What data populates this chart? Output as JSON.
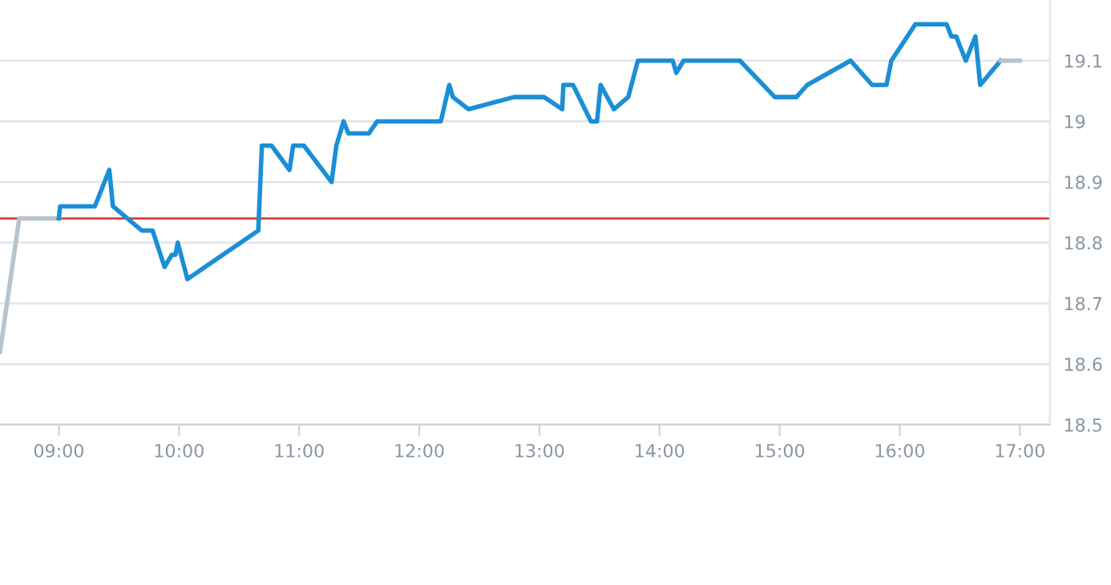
{
  "chart_data": {
    "type": "line",
    "series": [
      {
        "color": "#b8c4cc",
        "x": [
          8.51,
          8.67,
          9.0
        ],
        "values": [
          18.62,
          18.84,
          18.84
        ]
      },
      {
        "color": "#1a8fd6",
        "x": [
          9.0,
          9.01,
          9.3,
          9.42,
          9.45,
          9.69,
          9.78,
          9.88,
          9.94,
          9.97,
          9.99,
          10.07,
          10.66,
          10.69,
          10.77,
          10.92,
          10.95,
          11.04,
          11.27,
          11.31,
          11.37,
          11.41,
          11.58,
          11.65,
          12.18,
          12.25,
          12.28,
          12.41,
          12.79,
          13.04,
          13.19,
          13.2,
          13.28,
          13.43,
          13.48,
          13.51,
          13.62,
          13.74,
          13.82,
          14.11,
          14.14,
          14.2,
          14.67,
          14.96,
          15.14,
          15.23,
          15.59,
          15.77,
          15.89,
          15.93,
          16.13,
          16.39,
          16.43,
          16.47,
          16.55,
          16.63,
          16.67,
          16.84
        ],
        "values": [
          18.84,
          18.86,
          18.86,
          18.92,
          18.86,
          18.82,
          18.82,
          18.76,
          18.78,
          18.78,
          18.8,
          18.74,
          18.82,
          18.96,
          18.96,
          18.92,
          18.96,
          18.96,
          18.9,
          18.96,
          19.0,
          18.98,
          18.98,
          19.0,
          19.0,
          19.06,
          19.04,
          19.02,
          19.04,
          19.04,
          19.02,
          19.06,
          19.06,
          19.0,
          19.0,
          19.06,
          19.02,
          19.04,
          19.1,
          19.1,
          19.08,
          19.1,
          19.1,
          19.04,
          19.04,
          19.06,
          19.1,
          19.06,
          19.06,
          19.1,
          19.16,
          19.16,
          19.14,
          19.14,
          19.1,
          19.14,
          19.06,
          19.1
        ]
      },
      {
        "color": "#b8c4cc",
        "x": [
          16.84,
          17.0
        ],
        "values": [
          19.1,
          19.1
        ]
      }
    ],
    "xlim": [
      8.51,
      17.25
    ],
    "xticks": [
      {
        "value": 9,
        "label": "09:00"
      },
      {
        "value": 10,
        "label": "10:00"
      },
      {
        "value": 11,
        "label": "11:00"
      },
      {
        "value": 12,
        "label": "12:00"
      },
      {
        "value": 13,
        "label": "13:00"
      },
      {
        "value": 14,
        "label": "14:00"
      },
      {
        "value": 15,
        "label": "15:00"
      },
      {
        "value": 16,
        "label": "16:00"
      },
      {
        "value": 17,
        "label": "17:00"
      }
    ],
    "ylim": [
      18.5,
      19.2
    ],
    "yticks": [
      18.5,
      18.6,
      18.7,
      18.8,
      18.9,
      19,
      19.1
    ],
    "ref_lines": [
      {
        "axis": "y",
        "value": 18.84,
        "color": "#d9403a"
      }
    ],
    "grid": "y",
    "legend": false,
    "marker": "none",
    "line_style": "solid"
  }
}
